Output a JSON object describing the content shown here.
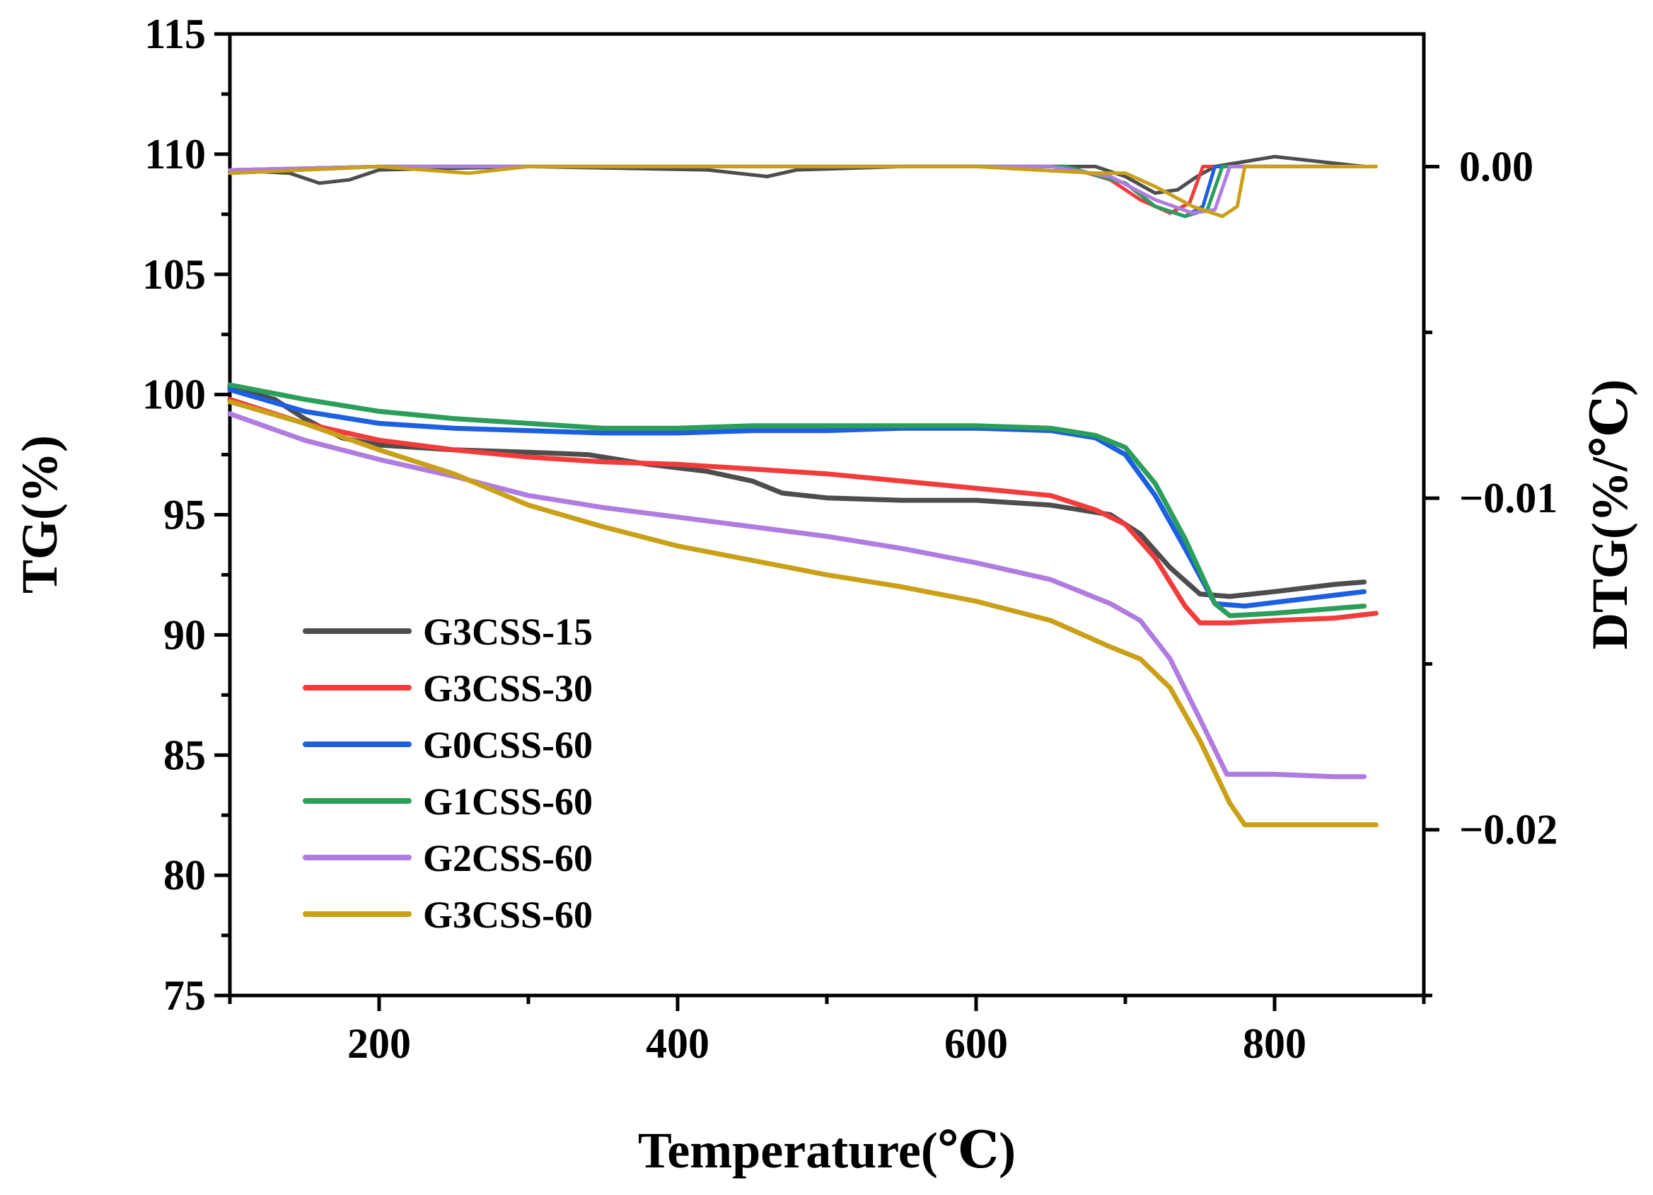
{
  "chart_data": {
    "type": "line",
    "xlabel": "Temperature(℃)",
    "ylabel_left": "TG(%)",
    "ylabel_right": "DTG(%/℃)",
    "xlim": [
      100,
      900
    ],
    "ylim_left": [
      75,
      115
    ],
    "ylim_right": [
      -0.025,
      0.004
    ],
    "x_ticks": [
      200,
      400,
      600,
      800
    ],
    "x_tick_labels": [
      "200",
      "400",
      "600",
      "800"
    ],
    "y_left_ticks": [
      75,
      80,
      85,
      90,
      95,
      100,
      105,
      110,
      115
    ],
    "y_left_tick_labels": [
      "75",
      "80",
      "85",
      "90",
      "95",
      "100",
      "105",
      "110",
      "115"
    ],
    "y_right_ticks": [
      0.0,
      -0.01,
      -0.02
    ],
    "y_right_tick_labels": [
      "0.00",
      "−0.01",
      "−0.02"
    ],
    "grid": false,
    "legend_position": "bottom-left",
    "series": [
      {
        "name": "G3CSS-15",
        "color": "#4d4d4d",
        "tg": [
          [
            100,
            100.3
          ],
          [
            130,
            99.8
          ],
          [
            150,
            99.0
          ],
          [
            175,
            98.2
          ],
          [
            200,
            97.9
          ],
          [
            250,
            97.7
          ],
          [
            300,
            97.6
          ],
          [
            340,
            97.5
          ],
          [
            380,
            97.1
          ],
          [
            420,
            96.8
          ],
          [
            450,
            96.4
          ],
          [
            470,
            95.9
          ],
          [
            500,
            95.7
          ],
          [
            550,
            95.6
          ],
          [
            600,
            95.6
          ],
          [
            650,
            95.4
          ],
          [
            690,
            95.0
          ],
          [
            710,
            94.2
          ],
          [
            730,
            92.8
          ],
          [
            750,
            91.7
          ],
          [
            770,
            91.6
          ],
          [
            800,
            91.8
          ],
          [
            840,
            92.1
          ],
          [
            860,
            92.2
          ]
        ],
        "dtg": [
          [
            100,
            -0.0001
          ],
          [
            140,
            -0.0002
          ],
          [
            160,
            -0.0005
          ],
          [
            180,
            -0.0004
          ],
          [
            200,
            -0.0001
          ],
          [
            300,
            0.0
          ],
          [
            420,
            -0.0001
          ],
          [
            460,
            -0.0003
          ],
          [
            480,
            -0.0001
          ],
          [
            550,
            0.0
          ],
          [
            680,
            0.0
          ],
          [
            700,
            -0.0003
          ],
          [
            720,
            -0.0008
          ],
          [
            735,
            -0.0007
          ],
          [
            748,
            -0.0003
          ],
          [
            760,
            0.0
          ],
          [
            800,
            0.0003
          ],
          [
            860,
            0.0
          ]
        ]
      },
      {
        "name": "G3CSS-30",
        "color": "#f23c3c",
        "tg": [
          [
            100,
            99.8
          ],
          [
            150,
            98.8
          ],
          [
            200,
            98.1
          ],
          [
            250,
            97.7
          ],
          [
            300,
            97.4
          ],
          [
            350,
            97.2
          ],
          [
            400,
            97.1
          ],
          [
            450,
            96.9
          ],
          [
            500,
            96.7
          ],
          [
            550,
            96.4
          ],
          [
            600,
            96.1
          ],
          [
            650,
            95.8
          ],
          [
            680,
            95.2
          ],
          [
            700,
            94.6
          ],
          [
            720,
            93.2
          ],
          [
            740,
            91.2
          ],
          [
            750,
            90.5
          ],
          [
            770,
            90.5
          ],
          [
            800,
            90.6
          ],
          [
            840,
            90.7
          ],
          [
            868,
            90.9
          ]
        ],
        "dtg": [
          [
            100,
            -0.0001
          ],
          [
            200,
            0.0
          ],
          [
            400,
            0.0
          ],
          [
            600,
            0.0
          ],
          [
            660,
            0.0
          ],
          [
            690,
            -0.0004
          ],
          [
            710,
            -0.001
          ],
          [
            730,
            -0.0014
          ],
          [
            743,
            -0.0011
          ],
          [
            752,
            0.0
          ],
          [
            800,
            0.0
          ],
          [
            868,
            0.0
          ]
        ]
      },
      {
        "name": "G0CSS-60",
        "color": "#1c5fe0",
        "tg": [
          [
            100,
            100.2
          ],
          [
            150,
            99.3
          ],
          [
            200,
            98.8
          ],
          [
            250,
            98.6
          ],
          [
            300,
            98.5
          ],
          [
            350,
            98.4
          ],
          [
            400,
            98.4
          ],
          [
            450,
            98.5
          ],
          [
            500,
            98.5
          ],
          [
            550,
            98.6
          ],
          [
            600,
            98.6
          ],
          [
            650,
            98.5
          ],
          [
            680,
            98.2
          ],
          [
            700,
            97.5
          ],
          [
            720,
            95.8
          ],
          [
            740,
            93.6
          ],
          [
            760,
            91.3
          ],
          [
            780,
            91.2
          ],
          [
            820,
            91.5
          ],
          [
            860,
            91.8
          ]
        ],
        "dtg": [
          [
            100,
            -0.0002
          ],
          [
            200,
            0.0
          ],
          [
            400,
            0.0
          ],
          [
            600,
            0.0
          ],
          [
            660,
            0.0
          ],
          [
            700,
            -0.0005
          ],
          [
            720,
            -0.0012
          ],
          [
            740,
            -0.0015
          ],
          [
            752,
            -0.0012
          ],
          [
            760,
            0.0
          ],
          [
            800,
            0.0
          ],
          [
            860,
            0.0
          ]
        ]
      },
      {
        "name": "G1CSS-60",
        "color": "#2b9e5a",
        "tg": [
          [
            100,
            100.4
          ],
          [
            150,
            99.8
          ],
          [
            200,
            99.3
          ],
          [
            250,
            99.0
          ],
          [
            300,
            98.8
          ],
          [
            350,
            98.6
          ],
          [
            400,
            98.6
          ],
          [
            450,
            98.7
          ],
          [
            500,
            98.7
          ],
          [
            550,
            98.7
          ],
          [
            600,
            98.7
          ],
          [
            650,
            98.6
          ],
          [
            680,
            98.3
          ],
          [
            700,
            97.8
          ],
          [
            720,
            96.3
          ],
          [
            740,
            94.0
          ],
          [
            760,
            91.3
          ],
          [
            770,
            90.8
          ],
          [
            800,
            90.9
          ],
          [
            840,
            91.1
          ],
          [
            860,
            91.2
          ]
        ],
        "dtg": [
          [
            100,
            -0.0001
          ],
          [
            200,
            0.0
          ],
          [
            400,
            0.0
          ],
          [
            600,
            0.0
          ],
          [
            660,
            0.0
          ],
          [
            700,
            -0.0005
          ],
          [
            720,
            -0.0012
          ],
          [
            740,
            -0.0015
          ],
          [
            755,
            -0.0013
          ],
          [
            765,
            0.0
          ],
          [
            800,
            0.0
          ],
          [
            860,
            0.0
          ]
        ]
      },
      {
        "name": "G2CSS-60",
        "color": "#b07ce0",
        "tg": [
          [
            100,
            99.2
          ],
          [
            150,
            98.1
          ],
          [
            200,
            97.3
          ],
          [
            250,
            96.6
          ],
          [
            300,
            95.8
          ],
          [
            350,
            95.3
          ],
          [
            400,
            94.9
          ],
          [
            450,
            94.5
          ],
          [
            500,
            94.1
          ],
          [
            550,
            93.6
          ],
          [
            600,
            93.0
          ],
          [
            650,
            92.3
          ],
          [
            690,
            91.3
          ],
          [
            710,
            90.6
          ],
          [
            730,
            89.0
          ],
          [
            750,
            86.5
          ],
          [
            768,
            84.2
          ],
          [
            800,
            84.2
          ],
          [
            840,
            84.1
          ],
          [
            860,
            84.1
          ]
        ],
        "dtg": [
          [
            100,
            -0.0001
          ],
          [
            200,
            0.0
          ],
          [
            400,
            0.0
          ],
          [
            600,
            0.0
          ],
          [
            650,
            0.0
          ],
          [
            690,
            -0.0003
          ],
          [
            720,
            -0.001
          ],
          [
            745,
            -0.0014
          ],
          [
            760,
            -0.0013
          ],
          [
            770,
            0.0
          ],
          [
            800,
            0.0
          ],
          [
            860,
            0.0
          ]
        ]
      },
      {
        "name": "G3CSS-60",
        "color": "#c9a017",
        "tg": [
          [
            100,
            99.7
          ],
          [
            150,
            98.8
          ],
          [
            200,
            97.7
          ],
          [
            250,
            96.7
          ],
          [
            300,
            95.4
          ],
          [
            350,
            94.5
          ],
          [
            400,
            93.7
          ],
          [
            450,
            93.1
          ],
          [
            500,
            92.5
          ],
          [
            550,
            92.0
          ],
          [
            600,
            91.4
          ],
          [
            650,
            90.6
          ],
          [
            690,
            89.5
          ],
          [
            710,
            89.0
          ],
          [
            730,
            87.8
          ],
          [
            750,
            85.6
          ],
          [
            770,
            83.0
          ],
          [
            780,
            82.1
          ],
          [
            800,
            82.1
          ],
          [
            840,
            82.1
          ],
          [
            868,
            82.1
          ]
        ],
        "dtg": [
          [
            100,
            -0.0002
          ],
          [
            200,
            0.0
          ],
          [
            260,
            -0.0002
          ],
          [
            300,
            0.0
          ],
          [
            400,
            0.0
          ],
          [
            600,
            0.0
          ],
          [
            680,
            -0.0002
          ],
          [
            700,
            -0.0002
          ],
          [
            720,
            -0.0006
          ],
          [
            745,
            -0.0012
          ],
          [
            765,
            -0.0015
          ],
          [
            775,
            -0.0012
          ],
          [
            780,
            0.0
          ],
          [
            820,
            0.0
          ],
          [
            868,
            0.0
          ]
        ]
      }
    ]
  }
}
